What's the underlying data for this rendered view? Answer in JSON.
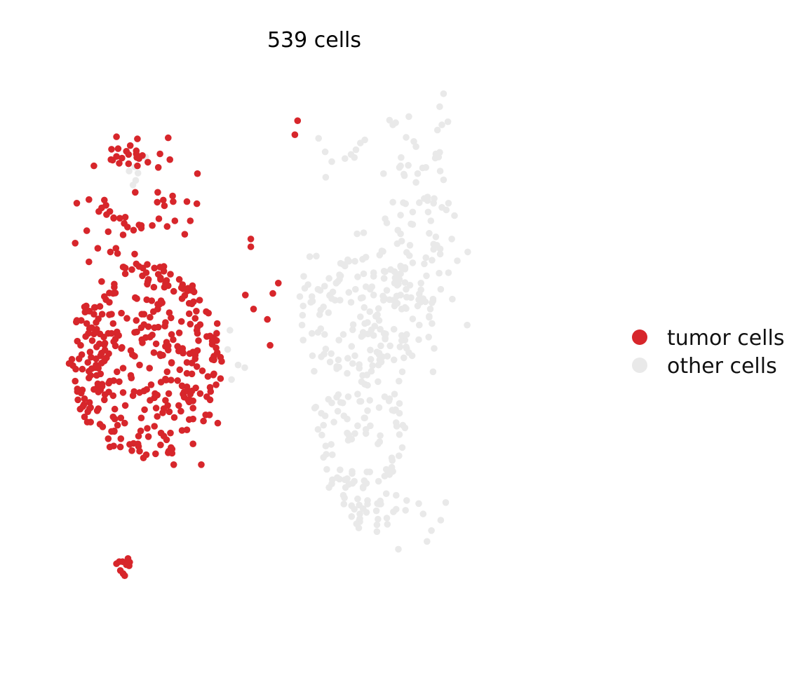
{
  "chart_data": {
    "type": "scatter",
    "title": "539 cells",
    "xlabel": "",
    "ylabel": "",
    "axes_visible": false,
    "grid": false,
    "legend_position": "right",
    "xlim": [
      0,
      100
    ],
    "ylim": [
      0,
      100
    ],
    "series": [
      {
        "name": "tumor cells",
        "color": "#d7262b",
        "points": []
      },
      {
        "name": "other cells",
        "color": "#e9e9e9",
        "points": []
      }
    ]
  }
}
